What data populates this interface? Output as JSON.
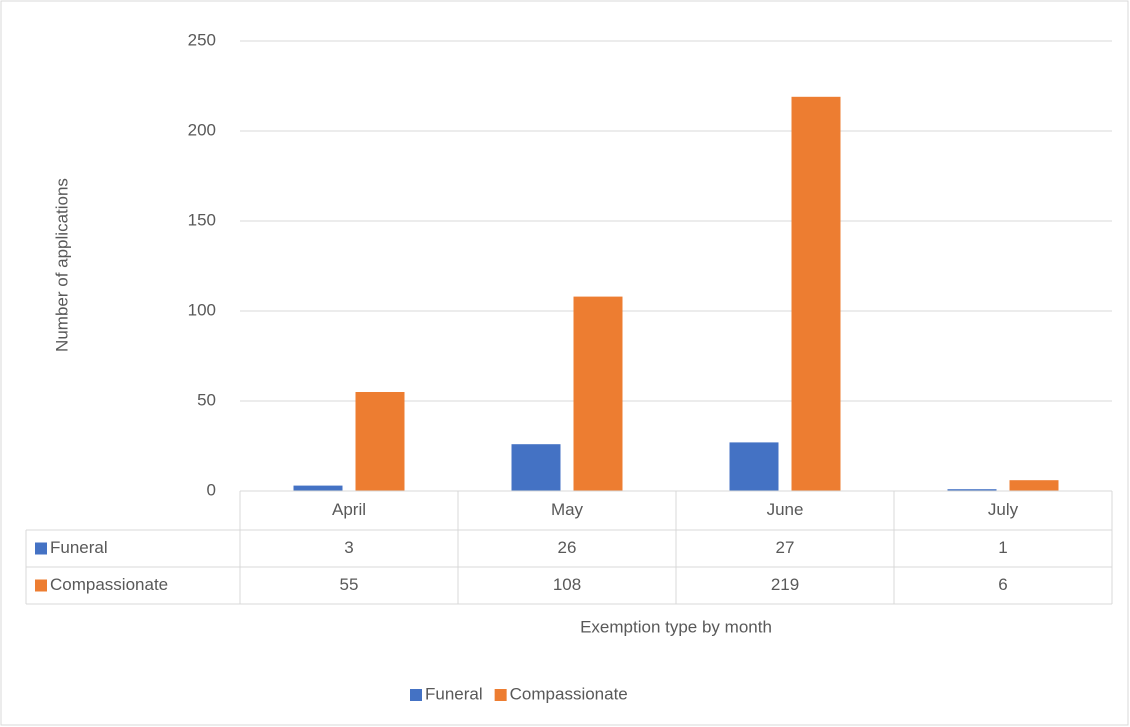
{
  "chart_data": {
    "type": "bar",
    "categories": [
      "April",
      "May",
      "June",
      "July"
    ],
    "series": [
      {
        "name": "Funeral",
        "color": "#4472c4",
        "values": [
          3,
          26,
          27,
          1
        ]
      },
      {
        "name": "Compassionate",
        "color": "#ed7d31",
        "values": [
          55,
          108,
          219,
          6
        ]
      }
    ],
    "x_label": "Exemption type by month",
    "y_label": "Number of applications",
    "ylim": [
      0,
      250
    ],
    "yticks": [
      0,
      50,
      100,
      150,
      200,
      250
    ],
    "grid": true,
    "legend": "bottom",
    "data_table": true
  }
}
